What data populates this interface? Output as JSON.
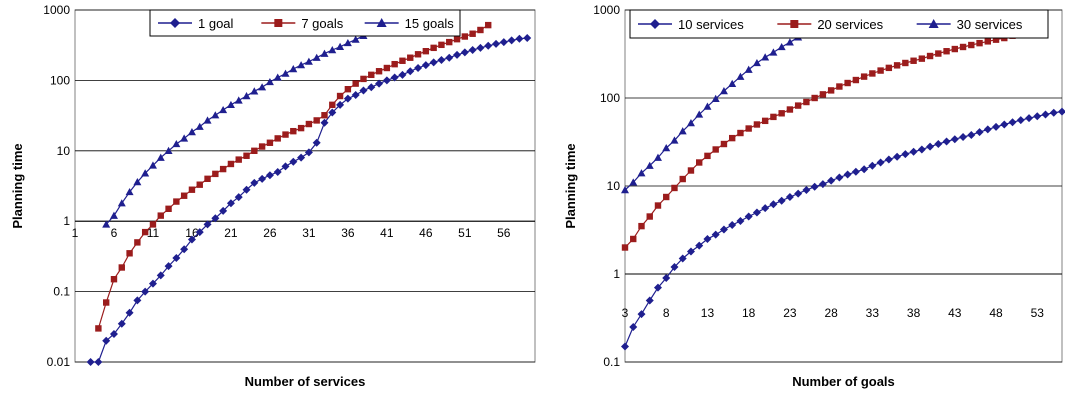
{
  "chart_data": [
    {
      "type": "line",
      "xlabel": "Number of services",
      "ylabel": "Planning time",
      "yscale": "log",
      "ylim": [
        0.01,
        1000
      ],
      "xlim": [
        1,
        60
      ],
      "xticks": [
        1,
        6,
        11,
        16,
        21,
        26,
        31,
        36,
        41,
        46,
        51,
        56
      ],
      "yticks": [
        0.01,
        0.1,
        1,
        10,
        100,
        1000
      ],
      "ytick_labels": [
        "0.01",
        "0.1",
        "1",
        "10",
        "100",
        "1000"
      ],
      "grid": "horizontal",
      "legend_position": "top",
      "x_axis_crosses_at": 1,
      "series": [
        {
          "name": "1 goal",
          "color": "#1F1F8F",
          "marker": "diamond",
          "points": [
            [
              3,
              0.01
            ],
            [
              4,
              0.01
            ],
            [
              5,
              0.02
            ],
            [
              6,
              0.025
            ],
            [
              7,
              0.035
            ],
            [
              8,
              0.05
            ],
            [
              9,
              0.075
            ],
            [
              10,
              0.1
            ],
            [
              11,
              0.13
            ],
            [
              12,
              0.17
            ],
            [
              13,
              0.23
            ],
            [
              14,
              0.3
            ],
            [
              15,
              0.4
            ],
            [
              16,
              0.55
            ],
            [
              17,
              0.7
            ],
            [
              18,
              0.9
            ],
            [
              19,
              1.1
            ],
            [
              20,
              1.4
            ],
            [
              21,
              1.8
            ],
            [
              22,
              2.2
            ],
            [
              23,
              2.8
            ],
            [
              24,
              3.5
            ],
            [
              25,
              4.0
            ],
            [
              26,
              4.5
            ],
            [
              27,
              5.0
            ],
            [
              28,
              6.0
            ],
            [
              29,
              7.0
            ],
            [
              30,
              8.0
            ],
            [
              31,
              9.5
            ],
            [
              32,
              13
            ],
            [
              33,
              25
            ],
            [
              34,
              35
            ],
            [
              35,
              45
            ],
            [
              36,
              55
            ],
            [
              37,
              62
            ],
            [
              38,
              72
            ],
            [
              39,
              80
            ],
            [
              40,
              90
            ],
            [
              41,
              100
            ],
            [
              42,
              110
            ],
            [
              43,
              120
            ],
            [
              44,
              135
            ],
            [
              45,
              150
            ],
            [
              46,
              165
            ],
            [
              47,
              180
            ],
            [
              48,
              195
            ],
            [
              49,
              210
            ],
            [
              50,
              230
            ],
            [
              51,
              250
            ],
            [
              52,
              270
            ],
            [
              53,
              290
            ],
            [
              54,
              310
            ],
            [
              55,
              330
            ],
            [
              56,
              350
            ],
            [
              57,
              370
            ],
            [
              58,
              390
            ],
            [
              59,
              400
            ]
          ]
        },
        {
          "name": "7 goals",
          "color": "#9B1C1C",
          "marker": "square",
          "points": [
            [
              4,
              0.03
            ],
            [
              5,
              0.07
            ],
            [
              6,
              0.15
            ],
            [
              7,
              0.22
            ],
            [
              8,
              0.35
            ],
            [
              9,
              0.5
            ],
            [
              10,
              0.7
            ],
            [
              11,
              0.9
            ],
            [
              12,
              1.2
            ],
            [
              13,
              1.5
            ],
            [
              14,
              1.9
            ],
            [
              15,
              2.3
            ],
            [
              16,
              2.8
            ],
            [
              17,
              3.3
            ],
            [
              18,
              4.0
            ],
            [
              19,
              4.7
            ],
            [
              20,
              5.5
            ],
            [
              21,
              6.5
            ],
            [
              22,
              7.5
            ],
            [
              23,
              8.5
            ],
            [
              24,
              10
            ],
            [
              25,
              11.5
            ],
            [
              26,
              13
            ],
            [
              27,
              15
            ],
            [
              28,
              17
            ],
            [
              29,
              19
            ],
            [
              30,
              21
            ],
            [
              31,
              24
            ],
            [
              32,
              27
            ],
            [
              33,
              32
            ],
            [
              34,
              45
            ],
            [
              35,
              60
            ],
            [
              36,
              75
            ],
            [
              37,
              90
            ],
            [
              38,
              105
            ],
            [
              39,
              120
            ],
            [
              40,
              135
            ],
            [
              41,
              150
            ],
            [
              42,
              170
            ],
            [
              43,
              190
            ],
            [
              44,
              210
            ],
            [
              45,
              235
            ],
            [
              46,
              260
            ],
            [
              47,
              290
            ],
            [
              48,
              320
            ],
            [
              49,
              350
            ],
            [
              50,
              385
            ],
            [
              51,
              420
            ],
            [
              52,
              460
            ],
            [
              53,
              520
            ],
            [
              54,
              610
            ]
          ]
        },
        {
          "name": "15 goals",
          "color": "#1F1F8F",
          "marker": "triangle",
          "points": [
            [
              5,
              0.9
            ],
            [
              6,
              1.2
            ],
            [
              7,
              1.8
            ],
            [
              8,
              2.6
            ],
            [
              9,
              3.6
            ],
            [
              10,
              4.8
            ],
            [
              11,
              6.2
            ],
            [
              12,
              8
            ],
            [
              13,
              10
            ],
            [
              14,
              12.5
            ],
            [
              15,
              15
            ],
            [
              16,
              18.5
            ],
            [
              17,
              22
            ],
            [
              18,
              27
            ],
            [
              19,
              32
            ],
            [
              20,
              38
            ],
            [
              21,
              45
            ],
            [
              22,
              52
            ],
            [
              23,
              60
            ],
            [
              24,
              70
            ],
            [
              25,
              80
            ],
            [
              26,
              95
            ],
            [
              27,
              110
            ],
            [
              28,
              125
            ],
            [
              29,
              145
            ],
            [
              30,
              165
            ],
            [
              31,
              185
            ],
            [
              32,
              210
            ],
            [
              33,
              240
            ],
            [
              34,
              270
            ],
            [
              35,
              300
            ],
            [
              36,
              340
            ],
            [
              37,
              380
            ],
            [
              38,
              430
            ],
            [
              39,
              480
            ],
            [
              40,
              540
            ]
          ]
        }
      ]
    },
    {
      "type": "line",
      "xlabel": "Number of goals",
      "ylabel": "Planning time",
      "yscale": "log",
      "ylim": [
        0.1,
        1000
      ],
      "xlim": [
        3,
        56
      ],
      "xticks": [
        3,
        8,
        13,
        18,
        23,
        28,
        33,
        38,
        43,
        48,
        53
      ],
      "yticks": [
        0.1,
        1,
        10,
        100,
        1000
      ],
      "ytick_labels": [
        "0.1",
        "1",
        "10",
        "100",
        "1000"
      ],
      "grid": "horizontal",
      "legend_position": "top",
      "x_axis_crosses_at": 1,
      "series": [
        {
          "name": "10 services",
          "color": "#1F1F8F",
          "marker": "diamond",
          "points": [
            [
              3,
              0.15
            ],
            [
              4,
              0.25
            ],
            [
              5,
              0.35
            ],
            [
              6,
              0.5
            ],
            [
              7,
              0.7
            ],
            [
              8,
              0.9
            ],
            [
              9,
              1.2
            ],
            [
              10,
              1.5
            ],
            [
              11,
              1.8
            ],
            [
              12,
              2.1
            ],
            [
              13,
              2.5
            ],
            [
              14,
              2.8
            ],
            [
              15,
              3.2
            ],
            [
              16,
              3.6
            ],
            [
              17,
              4.0
            ],
            [
              18,
              4.5
            ],
            [
              19,
              5.0
            ],
            [
              20,
              5.6
            ],
            [
              21,
              6.2
            ],
            [
              22,
              6.8
            ],
            [
              23,
              7.5
            ],
            [
              24,
              8.2
            ],
            [
              25,
              9
            ],
            [
              26,
              9.8
            ],
            [
              27,
              10.5
            ],
            [
              28,
              11.5
            ],
            [
              29,
              12.5
            ],
            [
              30,
              13.5
            ],
            [
              31,
              14.5
            ],
            [
              32,
              15.5
            ],
            [
              33,
              17
            ],
            [
              34,
              18.5
            ],
            [
              35,
              20
            ],
            [
              36,
              21.5
            ],
            [
              37,
              23
            ],
            [
              38,
              24.5
            ],
            [
              39,
              26
            ],
            [
              40,
              28
            ],
            [
              41,
              30
            ],
            [
              42,
              32
            ],
            [
              43,
              34
            ],
            [
              44,
              36
            ],
            [
              45,
              38
            ],
            [
              46,
              41
            ],
            [
              47,
              44
            ],
            [
              48,
              47
            ],
            [
              49,
              50
            ],
            [
              50,
              53
            ],
            [
              51,
              56
            ],
            [
              52,
              59
            ],
            [
              53,
              62
            ],
            [
              54,
              65
            ],
            [
              55,
              68
            ],
            [
              56,
              70
            ]
          ]
        },
        {
          "name": "20 services",
          "color": "#9B1C1C",
          "marker": "square",
          "points": [
            [
              3,
              2
            ],
            [
              4,
              2.5
            ],
            [
              5,
              3.5
            ],
            [
              6,
              4.5
            ],
            [
              7,
              6
            ],
            [
              8,
              7.5
            ],
            [
              9,
              9.5
            ],
            [
              10,
              12
            ],
            [
              11,
              15
            ],
            [
              12,
              18.5
            ],
            [
              13,
              22
            ],
            [
              14,
              26
            ],
            [
              15,
              30
            ],
            [
              16,
              35
            ],
            [
              17,
              40
            ],
            [
              18,
              45
            ],
            [
              19,
              50
            ],
            [
              20,
              55
            ],
            [
              21,
              61
            ],
            [
              22,
              67
            ],
            [
              23,
              74
            ],
            [
              24,
              82
            ],
            [
              25,
              90
            ],
            [
              26,
              100
            ],
            [
              27,
              110
            ],
            [
              28,
              122
            ],
            [
              29,
              135
            ],
            [
              30,
              148
            ],
            [
              31,
              160
            ],
            [
              32,
              175
            ],
            [
              33,
              190
            ],
            [
              34,
              205
            ],
            [
              35,
              220
            ],
            [
              36,
              235
            ],
            [
              37,
              250
            ],
            [
              38,
              265
            ],
            [
              39,
              280
            ],
            [
              40,
              300
            ],
            [
              41,
              320
            ],
            [
              42,
              340
            ],
            [
              43,
              360
            ],
            [
              44,
              380
            ],
            [
              45,
              400
            ],
            [
              46,
              420
            ],
            [
              47,
              440
            ],
            [
              48,
              460
            ],
            [
              49,
              480
            ],
            [
              50,
              510
            ],
            [
              51,
              545
            ],
            [
              52,
              620
            ]
          ]
        },
        {
          "name": "30 services",
          "color": "#1F1F8F",
          "marker": "triangle",
          "points": [
            [
              3,
              9
            ],
            [
              4,
              11
            ],
            [
              5,
              14
            ],
            [
              6,
              17
            ],
            [
              7,
              21
            ],
            [
              8,
              27
            ],
            [
              9,
              33
            ],
            [
              10,
              42
            ],
            [
              11,
              52
            ],
            [
              12,
              65
            ],
            [
              13,
              80
            ],
            [
              14,
              98
            ],
            [
              15,
              120
            ],
            [
              16,
              145
            ],
            [
              17,
              175
            ],
            [
              18,
              210
            ],
            [
              19,
              250
            ],
            [
              20,
              290
            ],
            [
              21,
              330
            ],
            [
              22,
              380
            ],
            [
              23,
              430
            ],
            [
              24,
              490
            ],
            [
              25,
              550
            ],
            [
              26,
              610
            ]
          ]
        }
      ]
    }
  ]
}
